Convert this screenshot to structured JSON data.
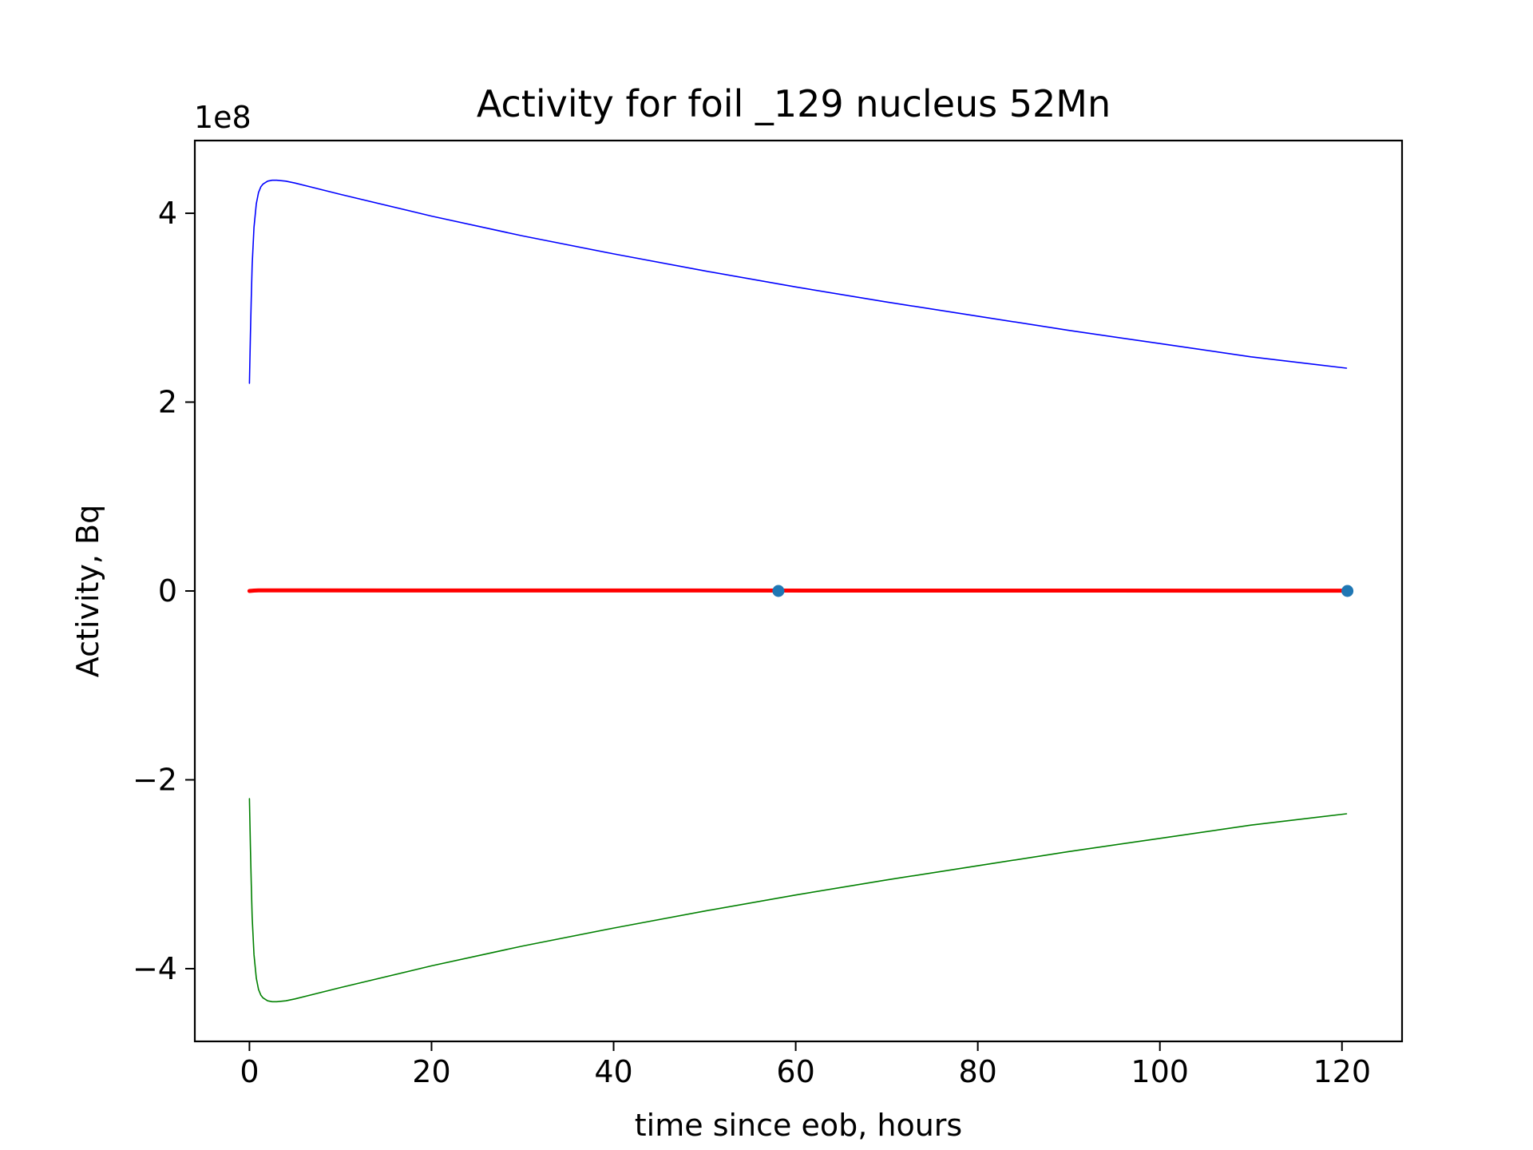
{
  "chart_data": {
    "type": "line",
    "title": "Activity for foil _129 nucleus 52Mn",
    "xlabel": "time since eob, hours",
    "ylabel": "Activity, Bq",
    "y_offset_label": "1e8",
    "y_scale_factor": 100000000,
    "xlim": [
      -6,
      126.6
    ],
    "ylim": [
      -4.77,
      4.77
    ],
    "x_ticks": [
      0,
      20,
      40,
      60,
      80,
      100,
      120
    ],
    "x_tick_labels": [
      "0",
      "20",
      "40",
      "60",
      "80",
      "100",
      "120"
    ],
    "y_ticks": [
      -4,
      -2,
      0,
      2,
      4
    ],
    "y_tick_labels": [
      "−4",
      "−2",
      "0",
      "2",
      "4"
    ],
    "grid": false,
    "legend": "none",
    "series": [
      {
        "color": "#0000ff",
        "style": "thin-line",
        "x": [
          0,
          0.1,
          0.2,
          0.3,
          0.5,
          0.75,
          1,
          1.25,
          1.5,
          2,
          2.5,
          3,
          4,
          5,
          10,
          20,
          30,
          40,
          50,
          60,
          70,
          80,
          90,
          100,
          110,
          120.5
        ],
        "y": [
          2.2,
          2.7,
          3.1,
          3.45,
          3.85,
          4.1,
          4.22,
          4.28,
          4.31,
          4.34,
          4.35,
          4.35,
          4.34,
          4.32,
          4.2,
          3.97,
          3.76,
          3.57,
          3.39,
          3.22,
          3.06,
          2.91,
          2.76,
          2.62,
          2.48,
          2.36
        ]
      },
      {
        "color": "#008000",
        "style": "thin-line",
        "x": [
          0,
          0.1,
          0.2,
          0.3,
          0.5,
          0.75,
          1,
          1.25,
          1.5,
          2,
          2.5,
          3,
          4,
          5,
          10,
          20,
          30,
          40,
          50,
          60,
          70,
          80,
          90,
          100,
          110,
          120.5
        ],
        "y": [
          -2.2,
          -2.7,
          -3.1,
          -3.45,
          -3.85,
          -4.1,
          -4.22,
          -4.28,
          -4.31,
          -4.34,
          -4.35,
          -4.35,
          -4.34,
          -4.32,
          -4.2,
          -3.97,
          -3.76,
          -3.57,
          -3.39,
          -3.22,
          -3.06,
          -2.91,
          -2.76,
          -2.62,
          -2.48,
          -2.36
        ]
      },
      {
        "color": "#ff0000",
        "style": "thick-line",
        "x": [
          0,
          0.5,
          1,
          2,
          3,
          120.5
        ],
        "y": [
          0.0,
          0.004,
          0.006,
          0.006,
          0.006,
          0.003
        ]
      }
    ],
    "points": {
      "color": "#1f77b4",
      "x": [
        58.1,
        120.6
      ],
      "y": [
        0.0,
        0.0
      ]
    }
  }
}
